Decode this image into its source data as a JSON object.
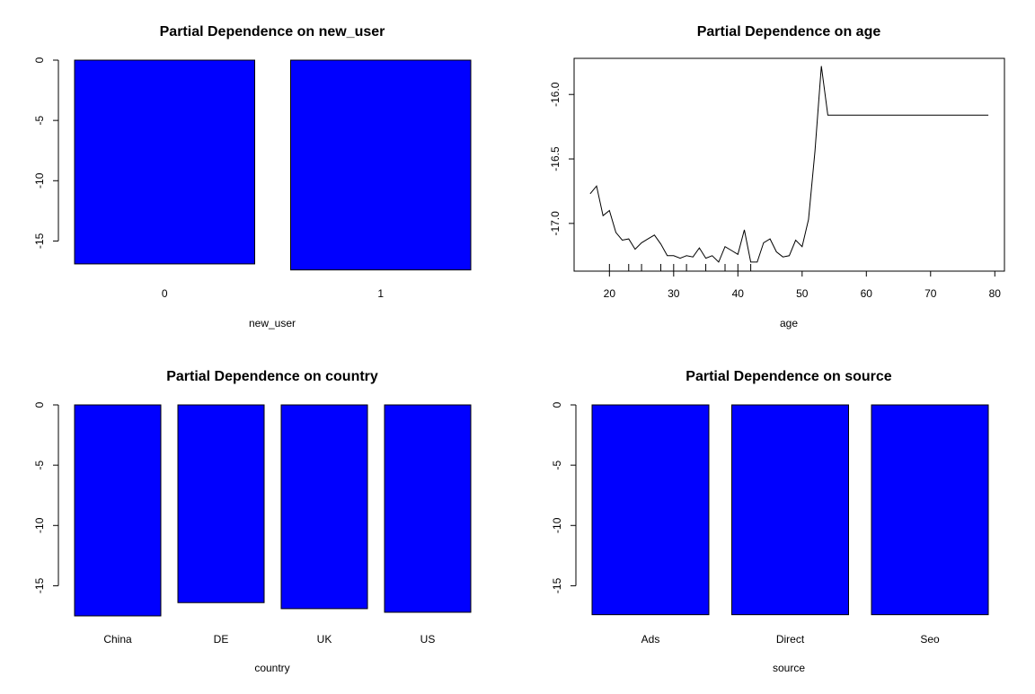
{
  "colors": {
    "bar_fill": "#0000FF",
    "line": "#000000",
    "background": "#FFFFFF"
  },
  "chart_data": [
    {
      "type": "bar",
      "title": "Partial Dependence on new_user",
      "xlabel": "new_user",
      "ylabel": "",
      "categories": [
        "0",
        "1"
      ],
      "values": [
        -16.9,
        -17.4
      ],
      "ylim": [
        -17.5,
        0
      ],
      "yticks": [
        0,
        -5,
        -10,
        -15
      ]
    },
    {
      "type": "line",
      "title": "Partial Dependence on age",
      "xlabel": "age",
      "ylabel": "",
      "x": [
        17,
        18,
        19,
        20,
        21,
        22,
        23,
        24,
        25,
        26,
        27,
        28,
        29,
        30,
        31,
        32,
        33,
        34,
        35,
        36,
        37,
        38,
        39,
        40,
        41,
        42,
        43,
        44,
        45,
        46,
        47,
        48,
        49,
        50,
        51,
        52,
        53,
        54,
        55,
        56,
        57,
        58,
        59,
        60,
        61,
        62,
        79
      ],
      "y": [
        -16.77,
        -16.71,
        -16.94,
        -16.9,
        -17.07,
        -17.13,
        -17.12,
        -17.2,
        -17.15,
        -17.12,
        -17.09,
        -17.16,
        -17.25,
        -17.25,
        -17.27,
        -17.25,
        -17.26,
        -17.19,
        -17.27,
        -17.25,
        -17.3,
        -17.18,
        -17.21,
        -17.24,
        -17.05,
        -17.3,
        -17.3,
        -17.15,
        -17.12,
        -17.22,
        -17.26,
        -17.25,
        -17.13,
        -17.18,
        -16.97,
        -16.44,
        -15.78,
        -16.16,
        -16.16,
        -16.16,
        -16.16,
        -16.16,
        -16.16,
        -16.16,
        -16.16,
        -16.16,
        -16.16
      ],
      "xlim": [
        14.5,
        81.5
      ],
      "ylim": [
        -17.37,
        -15.72
      ],
      "xticks": [
        20,
        30,
        40,
        50,
        60,
        70,
        80
      ],
      "yticks": [
        -16.0,
        -16.5,
        -17.0
      ],
      "rug": [
        20,
        23,
        25,
        28,
        30,
        32,
        35,
        38,
        40,
        42
      ]
    },
    {
      "type": "bar",
      "title": "Partial Dependence on country",
      "xlabel": "country",
      "ylabel": "",
      "categories": [
        "China",
        "DE",
        "UK",
        "US"
      ],
      "values": [
        -17.5,
        -16.4,
        -16.9,
        -17.2
      ],
      "ylim": [
        -17.5,
        0
      ],
      "yticks": [
        0,
        -5,
        -10,
        -15
      ]
    },
    {
      "type": "bar",
      "title": "Partial Dependence on source",
      "xlabel": "source",
      "ylabel": "",
      "categories": [
        "Ads",
        "Direct",
        "Seo"
      ],
      "values": [
        -17.4,
        -17.4,
        -17.4
      ],
      "ylim": [
        -17.5,
        0
      ],
      "yticks": [
        0,
        -5,
        -10,
        -15
      ]
    }
  ]
}
